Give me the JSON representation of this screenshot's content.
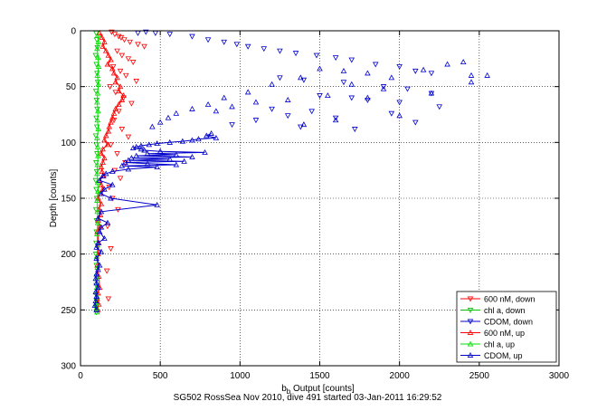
{
  "chart_data": {
    "type": "scatter",
    "xlabel_main": "b",
    "xlabel_sub": "b",
    "xlabel_rest": " Output [counts]",
    "ylabel": "Depth [counts]",
    "caption": "SG502 RossSea Nov 2010, dive 491 started 03-Jan-2011 16:29:52",
    "xlim": [
      0,
      3000
    ],
    "ylim": [
      0,
      300
    ],
    "y_reversed": true,
    "grid": true,
    "legend_position": "bottom-right",
    "x_ticks": [
      0,
      500,
      1000,
      1500,
      2000,
      2500,
      3000
    ],
    "y_ticks": [
      0,
      50,
      100,
      150,
      200,
      250,
      300
    ],
    "series": [
      {
        "name": "600 nM, down",
        "color": "#ff0000",
        "marker": "triangle-down",
        "line": false,
        "x": [
          195,
          215,
          240,
          255,
          275,
          310,
          360,
          400,
          230,
          260,
          300,
          330,
          205,
          250,
          285,
          350,
          185,
          220,
          270,
          320,
          240,
          210,
          260,
          300,
          190,
          230,
          280,
          215,
          250,
          180,
          200,
          235,
          170,
          190,
          165,
          175
        ],
        "y": [
          1,
          3,
          5,
          6,
          8,
          10,
          12,
          14,
          18,
          22,
          25,
          28,
          32,
          36,
          40,
          45,
          50,
          55,
          60,
          65,
          72,
          80,
          88,
          95,
          102,
          110,
          118,
          125,
          132,
          140,
          150,
          160,
          175,
          195,
          215,
          240
        ]
      },
      {
        "name": "chl a, down",
        "color": "#00c000",
        "marker": "triangle-down",
        "line": false,
        "x": [
          98,
          102,
          106,
          95,
          100,
          104,
          108,
          97,
          101,
          105,
          99,
          103,
          96,
          100,
          104,
          98,
          102,
          95,
          99,
          103,
          97,
          101,
          100,
          98,
          96,
          100,
          102,
          99,
          97,
          101,
          98,
          100
        ],
        "y": [
          2,
          8,
          15,
          22,
          30,
          38,
          46,
          54,
          62,
          70,
          78,
          86,
          94,
          102,
          110,
          118,
          126,
          134,
          142,
          150,
          160,
          170,
          180,
          190,
          200,
          210,
          220,
          228,
          236,
          242,
          248,
          252
        ]
      },
      {
        "name": "CDOM, down",
        "color": "#0000cc",
        "marker": "triangle-down",
        "line": false,
        "x": [
          360,
          410,
          470,
          560,
          700,
          800,
          900,
          980,
          1050,
          1150,
          1250,
          1350,
          1480,
          1600,
          1700,
          1850,
          2000,
          2100,
          2200,
          1250,
          1400,
          1650,
          1900,
          2050,
          2200,
          1500,
          1700,
          1800,
          2000,
          2250,
          1200,
          1450,
          1950,
          1300,
          1600,
          1100,
          2100,
          950,
          1380,
          1720
        ],
        "y": [
          2,
          1,
          2,
          3,
          5,
          8,
          10,
          12,
          14,
          16,
          18,
          20,
          22,
          24,
          26,
          30,
          32,
          36,
          38,
          42,
          44,
          46,
          50,
          52,
          56,
          58,
          60,
          62,
          64,
          68,
          70,
          72,
          74,
          76,
          78,
          80,
          82,
          84,
          86,
          88
        ]
      },
      {
        "name": "600 nM, up",
        "color": "#ff0000",
        "marker": "triangle-up",
        "line": true,
        "x": [
          120,
          135,
          150,
          140,
          160,
          175,
          190,
          170,
          200,
          210,
          230,
          220,
          250,
          240,
          270,
          260,
          240,
          220,
          210,
          200,
          190,
          180,
          175,
          160,
          150,
          170,
          140,
          130,
          150,
          140,
          130,
          135,
          145,
          120,
          130,
          140,
          120,
          110,
          130,
          115,
          125,
          110,
          120,
          105,
          115,
          110,
          105,
          115,
          120,
          110,
          105,
          115,
          108
        ],
        "y": [
          2,
          6,
          10,
          14,
          18,
          22,
          26,
          30,
          34,
          38,
          42,
          46,
          50,
          54,
          58,
          62,
          66,
          70,
          74,
          78,
          82,
          86,
          90,
          94,
          98,
          102,
          106,
          110,
          114,
          118,
          122,
          126,
          130,
          134,
          138,
          142,
          146,
          150,
          155,
          160,
          165,
          170,
          175,
          180,
          190,
          200,
          210,
          220,
          230,
          235,
          240,
          245,
          250
        ]
      },
      {
        "name": "chl a, up",
        "color": "#00e000",
        "marker": "triangle-up",
        "line": true,
        "x": [
          108,
          112,
          104,
          110,
          114,
          106,
          112,
          108,
          104,
          110,
          106,
          112,
          104,
          108,
          110,
          106,
          104,
          108,
          110,
          104,
          106,
          108,
          104,
          106,
          102,
          106,
          104,
          102,
          104,
          100,
          102,
          104
        ],
        "y": [
          4,
          10,
          16,
          24,
          32,
          40,
          48,
          56,
          64,
          72,
          80,
          88,
          96,
          104,
          112,
          120,
          128,
          136,
          144,
          152,
          162,
          172,
          182,
          192,
          202,
          212,
          222,
          230,
          238,
          244,
          248,
          252
        ]
      },
      {
        "name": "CDOM, up",
        "color": "#0000cc",
        "marker": "triangle-up",
        "line": true,
        "x": [
          820,
          790,
          850,
          740,
          700,
          640,
          560,
          480,
          430,
          380,
          350,
          330,
          380,
          400,
          500,
          780,
          420,
          600,
          350,
          700,
          320,
          560,
          300,
          650,
          280,
          420,
          600,
          260,
          480,
          300,
          200,
          160,
          140,
          120,
          200,
          150,
          130,
          190,
          480,
          130,
          110,
          170,
          130,
          120,
          150,
          110,
          100,
          130,
          100,
          120,
          110,
          100,
          95,
          100,
          110,
          95,
          100,
          95,
          90,
          100
        ],
        "y": [
          92,
          94,
          96,
          97,
          98,
          99,
          100,
          101,
          102,
          103,
          104,
          105,
          106,
          107,
          108,
          109,
          110,
          111,
          112,
          113,
          114,
          115,
          116,
          117,
          118,
          119,
          120,
          121,
          122,
          124,
          126,
          128,
          130,
          134,
          138,
          142,
          146,
          150,
          156,
          162,
          168,
          172,
          176,
          180,
          186,
          190,
          194,
          198,
          204,
          210,
          214,
          218,
          222,
          226,
          230,
          234,
          238,
          242,
          246,
          250
        ]
      },
      {
        "name": "CDOM, up",
        "color": "#0000cc",
        "marker": "triangle-up",
        "line": false,
        "x": [
          2400,
          2300,
          2150,
          2450,
          1950,
          1800,
          1650,
          1500,
          1380,
          1200,
          1050,
          900,
          800,
          700,
          600,
          550,
          500,
          450,
          1700,
          1900,
          2200,
          1550,
          1300,
          1100,
          950,
          850,
          2000,
          1800,
          1600,
          1400,
          2450,
          2550
        ],
        "y": [
          28,
          30,
          35,
          40,
          42,
          38,
          36,
          34,
          42,
          48,
          55,
          60,
          66,
          70,
          74,
          78,
          82,
          86,
          48,
          52,
          56,
          58,
          62,
          64,
          68,
          72,
          76,
          60,
          80,
          84,
          46,
          40
        ]
      }
    ],
    "legend": [
      {
        "label": "600 nM, down",
        "color": "#ff0000",
        "marker": "triangle-down"
      },
      {
        "label": "chl a, down",
        "color": "#00c000",
        "marker": "triangle-down"
      },
      {
        "label": "CDOM, down",
        "color": "#0000cc",
        "marker": "triangle-down"
      },
      {
        "label": "600 nM, up",
        "color": "#ff0000",
        "marker": "triangle-up"
      },
      {
        "label": "chl a, up",
        "color": "#00e000",
        "marker": "triangle-up"
      },
      {
        "label": "CDOM, up",
        "color": "#0000cc",
        "marker": "triangle-up"
      }
    ]
  }
}
